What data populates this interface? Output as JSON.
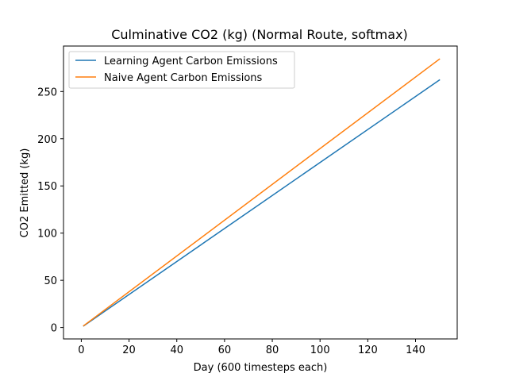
{
  "chart_data": {
    "type": "line",
    "title": "Culminative CO2 (kg) (Normal Route, softmax)",
    "xlabel": "Day (600 timesteps each)",
    "ylabel": "CO2 Emitted (kg)",
    "xlim": [
      -7.45,
      157.45
    ],
    "ylim": [
      -12.1,
      298.2
    ],
    "xticks": [
      0,
      20,
      40,
      60,
      80,
      100,
      120,
      140
    ],
    "yticks": [
      0,
      50,
      100,
      150,
      200,
      250
    ],
    "grid": false,
    "legend_position": "upper-left",
    "series": [
      {
        "name": "Learning Agent Carbon Emissions",
        "color": "#1f77b4",
        "x_start": 1,
        "x_end": 150,
        "y_start": 1.75,
        "y_end": 262.2
      },
      {
        "name": "Naive Agent Carbon Emissions",
        "color": "#ff7f0e",
        "x_start": 1,
        "x_end": 150,
        "y_start": 1.9,
        "y_end": 284.3
      }
    ]
  }
}
